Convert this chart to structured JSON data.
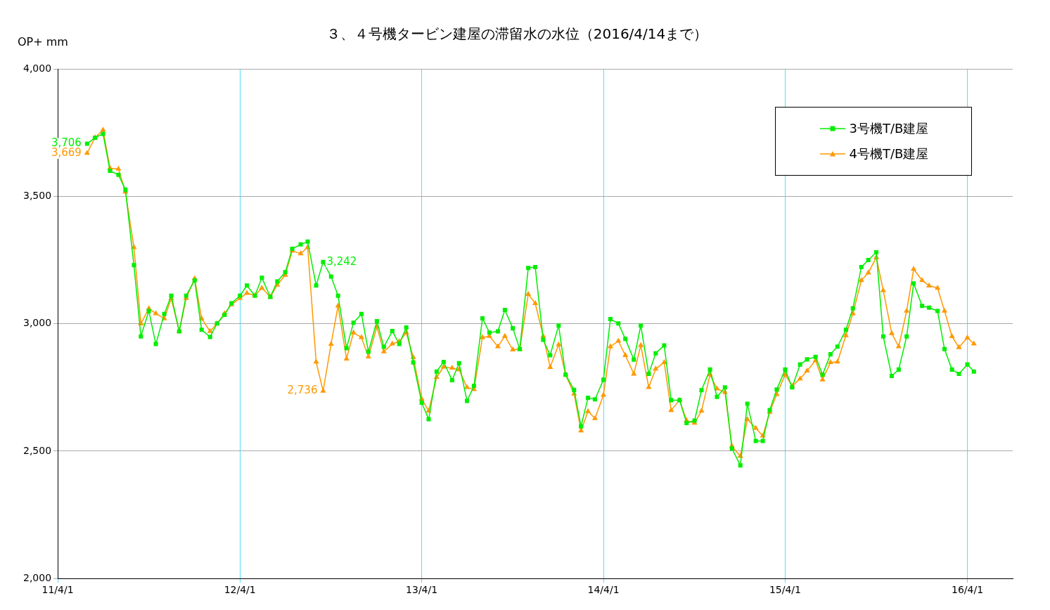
{
  "chart_data": {
    "type": "line",
    "title": "３、４号機タービン建屋の滞留水の水位（2016/4/14まで）",
    "ylabel": "OP+ mm",
    "x": [
      "2011-05-30",
      "2011-06-15",
      "2011-07-01",
      "2011-07-15",
      "2011-08-01",
      "2011-08-15",
      "2011-09-01",
      "2011-09-15",
      "2011-10-01",
      "2011-10-15",
      "2011-11-01",
      "2011-11-15",
      "2011-12-01",
      "2011-12-15",
      "2012-01-01",
      "2012-01-15",
      "2012-02-01",
      "2012-02-15",
      "2012-03-01",
      "2012-03-15",
      "2012-04-01",
      "2012-04-15",
      "2012-05-01",
      "2012-05-15",
      "2012-06-01",
      "2012-06-15",
      "2012-07-01",
      "2012-07-15",
      "2012-08-01",
      "2012-08-15",
      "2012-09-01",
      "2012-09-15",
      "2012-10-01",
      "2012-10-15",
      "2012-11-01",
      "2012-11-15",
      "2012-12-01",
      "2012-12-15",
      "2013-01-01",
      "2013-01-15",
      "2013-02-01",
      "2013-02-15",
      "2013-03-01",
      "2013-03-15",
      "2013-04-01",
      "2013-04-15",
      "2013-05-01",
      "2013-05-15",
      "2013-06-01",
      "2013-06-15",
      "2013-07-01",
      "2013-07-15",
      "2013-08-01",
      "2013-08-15",
      "2013-09-01",
      "2013-09-15",
      "2013-10-01",
      "2013-10-15",
      "2013-11-01",
      "2013-11-15",
      "2013-12-01",
      "2013-12-15",
      "2014-01-01",
      "2014-01-15",
      "2014-02-01",
      "2014-02-15",
      "2014-03-01",
      "2014-03-15",
      "2014-04-01",
      "2014-04-15",
      "2014-05-01",
      "2014-05-15",
      "2014-06-01",
      "2014-06-15",
      "2014-07-01",
      "2014-07-15",
      "2014-08-01",
      "2014-08-15",
      "2014-09-01",
      "2014-09-15",
      "2014-10-01",
      "2014-10-15",
      "2014-11-01",
      "2014-11-15",
      "2014-12-01",
      "2014-12-15",
      "2015-01-01",
      "2015-01-15",
      "2015-02-01",
      "2015-02-15",
      "2015-03-01",
      "2015-03-15",
      "2015-04-01",
      "2015-04-15",
      "2015-05-01",
      "2015-05-15",
      "2015-06-01",
      "2015-06-15",
      "2015-07-01",
      "2015-07-15",
      "2015-08-01",
      "2015-08-15",
      "2015-09-01",
      "2015-09-15",
      "2015-10-01",
      "2015-10-15",
      "2015-11-01",
      "2015-11-15",
      "2015-12-01",
      "2015-12-15",
      "2016-01-01",
      "2016-01-15",
      "2016-02-01",
      "2016-02-15",
      "2016-03-01",
      "2016-03-15",
      "2016-04-01",
      "2016-04-14"
    ],
    "series": [
      {
        "name": "3号機T/B建屋",
        "color": "#00ee00",
        "marker": "square",
        "values": [
          3706,
          3730,
          3745,
          3600,
          3584,
          3526,
          3230,
          2950,
          3050,
          2920,
          3038,
          3110,
          2970,
          3110,
          3170,
          2976,
          2948,
          3001,
          3035,
          3080,
          3110,
          3150,
          3110,
          3180,
          3105,
          3166,
          3202,
          3294,
          3311,
          3322,
          3150,
          3242,
          3185,
          3110,
          2904,
          3004,
          3038,
          2890,
          3010,
          2909,
          2971,
          2920,
          2985,
          2848,
          2690,
          2625,
          2812,
          2850,
          2778,
          2845,
          2697,
          2756,
          3021,
          2965,
          2970,
          3054,
          2982,
          2900,
          3219,
          3222,
          2937,
          2876,
          2993,
          2800,
          2740,
          2597,
          2709,
          2703,
          2780,
          3018,
          3001,
          2940,
          2859,
          2993,
          2803,
          2884,
          2915,
          2700,
          2700,
          2610,
          2620,
          2739,
          2820,
          2713,
          2750,
          2510,
          2444,
          2686,
          2540,
          2540,
          2661,
          2742,
          2820,
          2750,
          2840,
          2860,
          2870,
          2800,
          2880,
          2910,
          2976,
          3060,
          3222,
          3250,
          3280,
          2950,
          2795,
          2820,
          2950,
          3158,
          3070,
          3063,
          3050,
          2900,
          2820,
          2803,
          2840,
          2812
        ]
      },
      {
        "name": "4号機T/B建屋",
        "color": "#ff9900",
        "marker": "triangle",
        "values": [
          3669,
          3730,
          3760,
          3610,
          3607,
          3517,
          3300,
          3000,
          3060,
          3040,
          3020,
          3099,
          2970,
          3100,
          3177,
          3020,
          2970,
          3000,
          3040,
          3075,
          3100,
          3120,
          3110,
          3140,
          3105,
          3152,
          3191,
          3286,
          3275,
          3300,
          2850,
          2736,
          2920,
          3070,
          2862,
          2965,
          2946,
          2870,
          2988,
          2890,
          2921,
          2930,
          2965,
          2868,
          2705,
          2658,
          2790,
          2830,
          2826,
          2820,
          2750,
          2742,
          2946,
          2951,
          2910,
          2951,
          2898,
          2900,
          3116,
          3080,
          2951,
          2829,
          2918,
          2800,
          2725,
          2580,
          2656,
          2628,
          2720,
          2910,
          2932,
          2876,
          2803,
          2915,
          2750,
          2823,
          2848,
          2660,
          2700,
          2620,
          2610,
          2658,
          2800,
          2745,
          2731,
          2520,
          2480,
          2625,
          2590,
          2560,
          2653,
          2723,
          2800,
          2755,
          2784,
          2815,
          2856,
          2780,
          2848,
          2850,
          2954,
          3040,
          3170,
          3200,
          3260,
          3130,
          2962,
          2910,
          3050,
          3214,
          3170,
          3149,
          3140,
          3050,
          2950,
          2907,
          2945,
          2921
        ]
      }
    ],
    "xlim": [
      "2011-04-01",
      "2016-07-01"
    ],
    "xticks": [
      {
        "value": "2011-04-01",
        "label": "11/4/1"
      },
      {
        "value": "2012-04-01",
        "label": "12/4/1"
      },
      {
        "value": "2013-04-01",
        "label": "13/4/1"
      },
      {
        "value": "2014-04-01",
        "label": "14/4/1"
      },
      {
        "value": "2015-04-01",
        "label": "15/4/1"
      },
      {
        "value": "2016-04-01",
        "label": "16/4/1"
      }
    ],
    "ylim": [
      2000,
      4000
    ],
    "yticks": [
      {
        "value": 2000,
        "label": "2,000"
      },
      {
        "value": 2500,
        "label": "2,500"
      },
      {
        "value": 3000,
        "label": "3,000"
      },
      {
        "value": 3500,
        "label": "3,500"
      },
      {
        "value": 4000,
        "label": "4,000"
      }
    ],
    "annotations": [
      {
        "text": "3,706",
        "x": "2011-05-30",
        "y": 3706
      },
      {
        "text": "3,669",
        "x": "2011-05-30",
        "y": 3669
      },
      {
        "text": "3,242",
        "x": "2012-09-15",
        "y": 3242
      },
      {
        "text": "2,736",
        "x": "2012-09-15",
        "y": 2736
      }
    ],
    "grid": true,
    "legend": "top right"
  }
}
